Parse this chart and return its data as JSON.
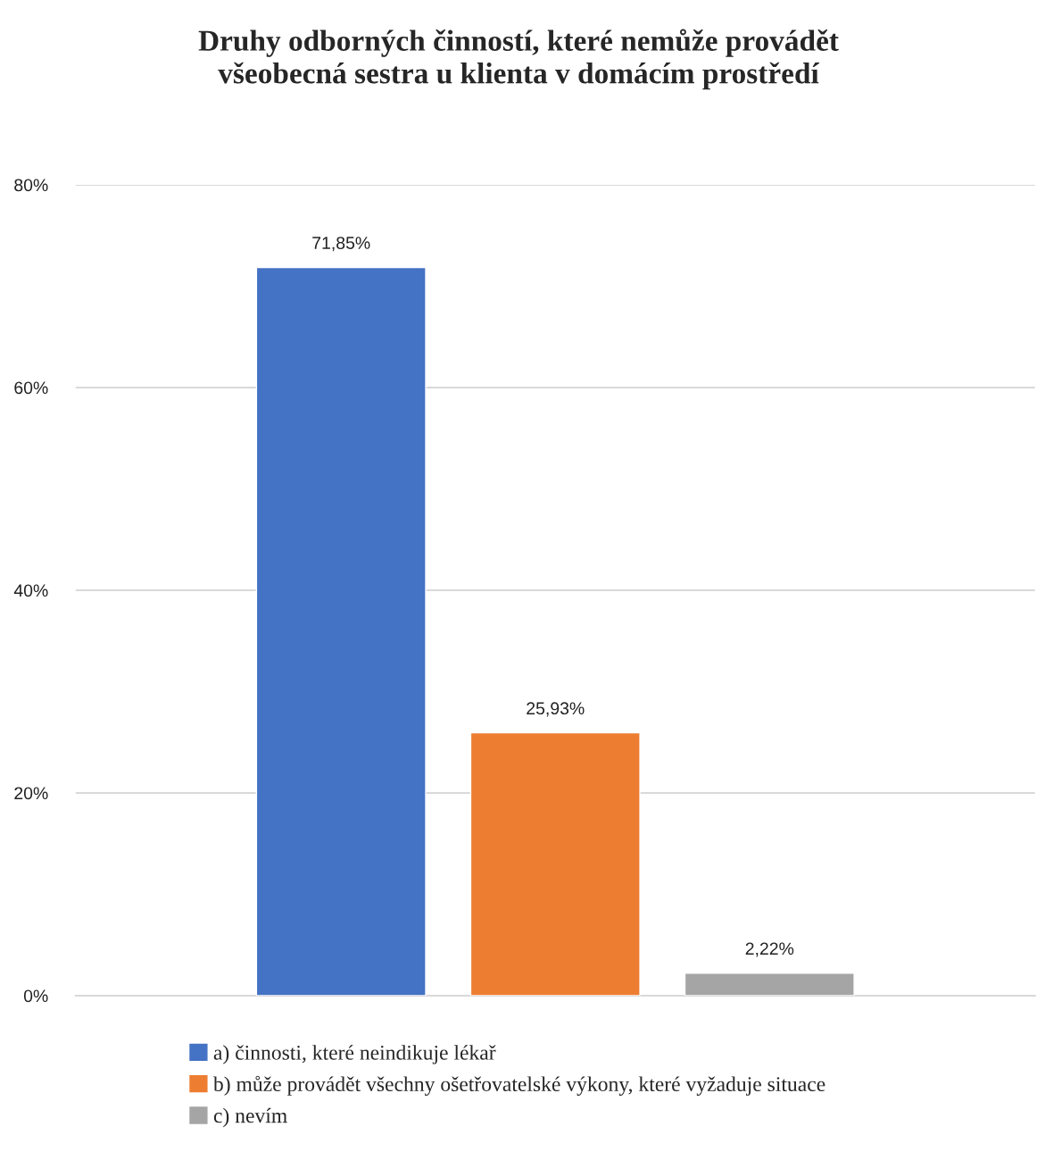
{
  "chart_data": {
    "type": "bar",
    "title": "Druhy odborných činností, které nemůže provádět\nvšeobecná sestra u klienta v domácím prostředí",
    "categories": [
      null
    ],
    "series": [
      {
        "name": "a) činnosti, které neindikuje lékař",
        "color": "#4472c4",
        "values": [
          71.85
        ],
        "value_labels": [
          "71,85%"
        ]
      },
      {
        "name": "b) může provádět všechny ošetřovatelské výkony, které vyžaduje situace",
        "color": "#ed7d31",
        "values": [
          25.93
        ],
        "value_labels": [
          "25,93%"
        ]
      },
      {
        "name": "c) nevím",
        "color": "#a5a5a5",
        "values": [
          2.22
        ],
        "value_labels": [
          "2,22%"
        ]
      }
    ],
    "ylim": [
      0,
      80
    ],
    "yticks": [
      {
        "value": 0,
        "label": "0%"
      },
      {
        "value": 20,
        "label": "20%"
      },
      {
        "value": 40,
        "label": "40%"
      },
      {
        "value": 60,
        "label": "60%"
      },
      {
        "value": 80,
        "label": "80%"
      }
    ],
    "grid": "y",
    "legend": "bottom"
  }
}
